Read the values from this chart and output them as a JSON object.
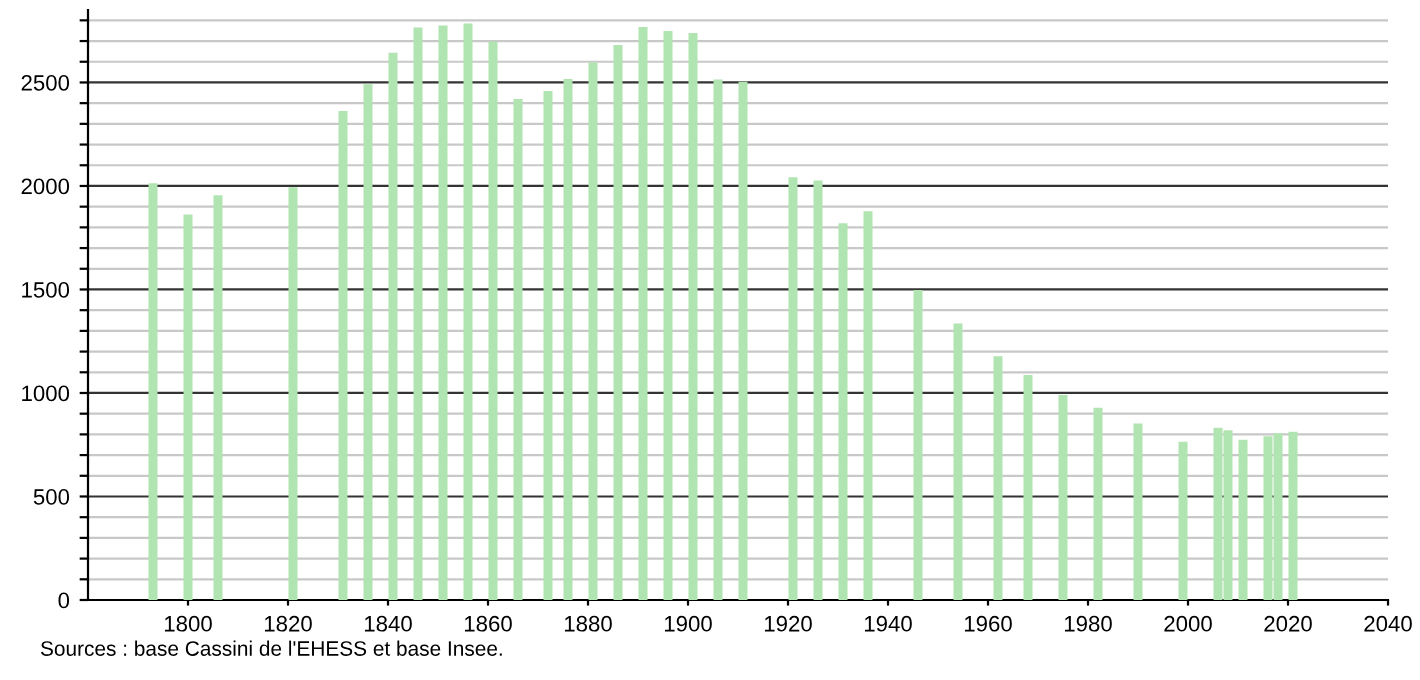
{
  "chart_data": {
    "type": "bar",
    "x": [
      1793,
      1800,
      1806,
      1821,
      1831,
      1836,
      1841,
      1846,
      1851,
      1856,
      1861,
      1866,
      1872,
      1876,
      1881,
      1886,
      1891,
      1896,
      1901,
      1906,
      1911,
      1921,
      1926,
      1931,
      1936,
      1946,
      1954,
      1962,
      1968,
      1975,
      1982,
      1990,
      1999,
      2006,
      2008,
      2011,
      2016,
      2018,
      2021
    ],
    "values": [
      2013,
      1862,
      1955,
      1994,
      2362,
      2491,
      2643,
      2765,
      2775,
      2785,
      2698,
      2420,
      2459,
      2517,
      2597,
      2681,
      2768,
      2749,
      2739,
      2514,
      2504,
      2042,
      2026,
      1820,
      1878,
      1497,
      1336,
      1178,
      1087,
      990,
      929,
      852,
      765,
      832,
      820,
      774,
      791,
      806,
      813
    ],
    "color": "#b0e4b0",
    "xlim": [
      1780,
      2040
    ],
    "xticks": [
      1800,
      1820,
      1840,
      1860,
      1880,
      1900,
      1920,
      1940,
      1960,
      1980,
      2000,
      2020,
      2040
    ],
    "ylim": [
      0,
      2850
    ],
    "yticks": [
      0,
      {
        "value": 100,
        "label": null
      },
      {
        "value": 200,
        "label": null
      },
      {
        "value": 300,
        "label": null
      },
      {
        "value": 400,
        "label": null
      },
      500,
      {
        "value": 600,
        "label": null
      },
      {
        "value": 700,
        "label": null
      },
      {
        "value": 800,
        "label": null
      },
      {
        "value": 900,
        "label": null
      },
      1000,
      {
        "value": 1100,
        "label": null
      },
      {
        "value": 1200,
        "label": null
      },
      {
        "value": 1300,
        "label": null
      },
      {
        "value": 1400,
        "label": null
      },
      1500,
      {
        "value": 1600,
        "label": null
      },
      {
        "value": 1700,
        "label": null
      },
      {
        "value": 1800,
        "label": null
      },
      {
        "value": 1900,
        "label": null
      },
      2000,
      {
        "value": 2100,
        "label": null
      },
      {
        "value": 2200,
        "label": null
      },
      {
        "value": 2300,
        "label": null
      },
      {
        "value": 2400,
        "label": null
      },
      2500,
      {
        "value": 2600,
        "label": null
      },
      {
        "value": 2700,
        "label": null
      },
      {
        "value": 2800,
        "label": null
      }
    ],
    "grid": "y",
    "annotations": [
      "Sources : base Cassini de l'EHESS et base Insee."
    ]
  }
}
